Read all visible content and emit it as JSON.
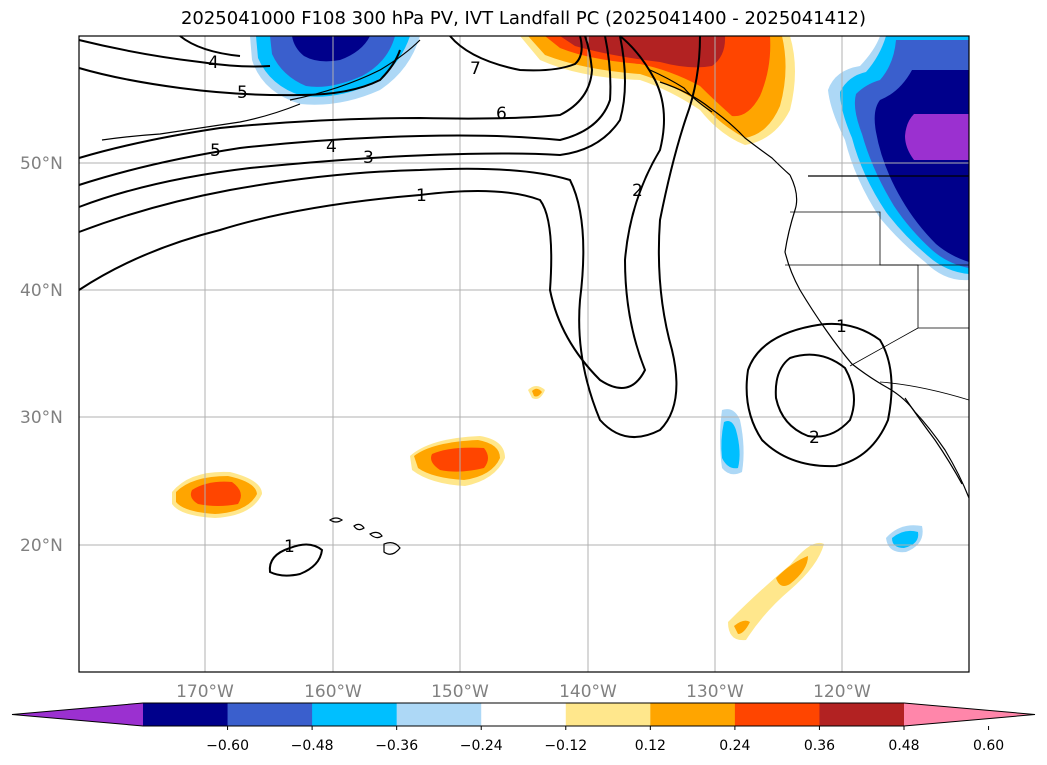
{
  "title": "2025041000 F108 300 hPa PV, IVT Landfall PC (2025041400 - 2025041412)",
  "lat_labels": [
    "50°N",
    "40°N",
    "30°N",
    "20°N"
  ],
  "lon_labels": [
    "170°W",
    "160°W",
    "150°W",
    "140°W",
    "130°W",
    "120°W"
  ],
  "contour_labels": [
    "4",
    "5",
    "5",
    "4",
    "3",
    "1",
    "7",
    "6",
    "2",
    "1",
    "2",
    "1"
  ],
  "colorbar": {
    "ticks": [
      "−0.60",
      "−0.48",
      "−0.36",
      "−0.24",
      "−0.12",
      "0.12",
      "0.24",
      "0.36",
      "0.48",
      "0.60"
    ],
    "colors": [
      "#9b30d0",
      "#00008b",
      "#3a5fcd",
      "#00bfff",
      "#add8f6",
      "#ffffff",
      "#ffe78c",
      "#ffa500",
      "#ff4500",
      "#b22222",
      "#ff86aa"
    ]
  }
}
